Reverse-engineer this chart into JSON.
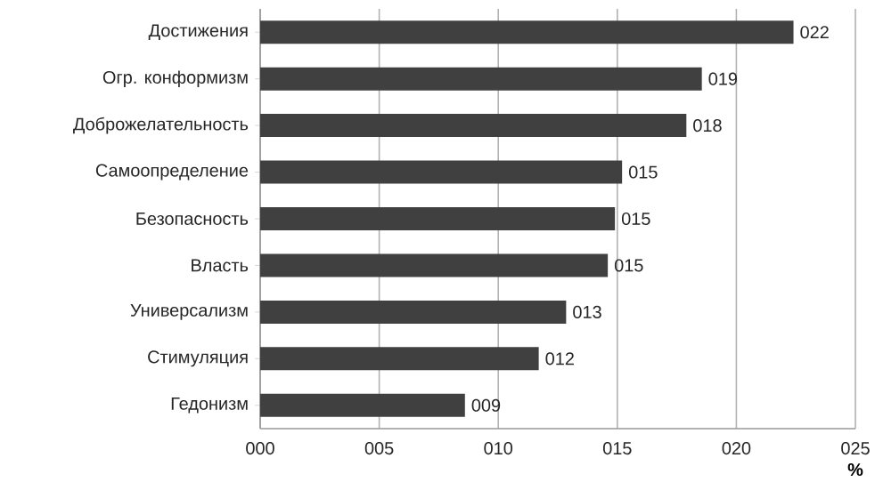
{
  "chart_data": {
    "type": "bar",
    "orientation": "horizontal",
    "xlabel": "%",
    "categories": [
      "Достижения",
      "Огр. конформизм",
      "Доброжелательность",
      "Самоопределение",
      "Безопасность",
      "Власть",
      "Универсализм",
      "Стимуляция",
      "Гедонизм"
    ],
    "values": [
      22.4,
      18.55,
      17.9,
      15.2,
      14.9,
      14.6,
      12.85,
      11.7,
      8.6
    ],
    "value_labels": [
      "022",
      "019",
      "018",
      "015",
      "015",
      "015",
      "013",
      "012",
      "009"
    ],
    "color": "#404040",
    "xlim": [
      0,
      25
    ],
    "xticks": [
      {
        "value": 0,
        "label": "000"
      },
      {
        "value": 5,
        "label": "005"
      },
      {
        "value": 10,
        "label": "010"
      },
      {
        "value": 15,
        "label": "015"
      },
      {
        "value": 20,
        "label": "020"
      },
      {
        "value": 25,
        "label": "025"
      }
    ],
    "grid": "x"
  }
}
